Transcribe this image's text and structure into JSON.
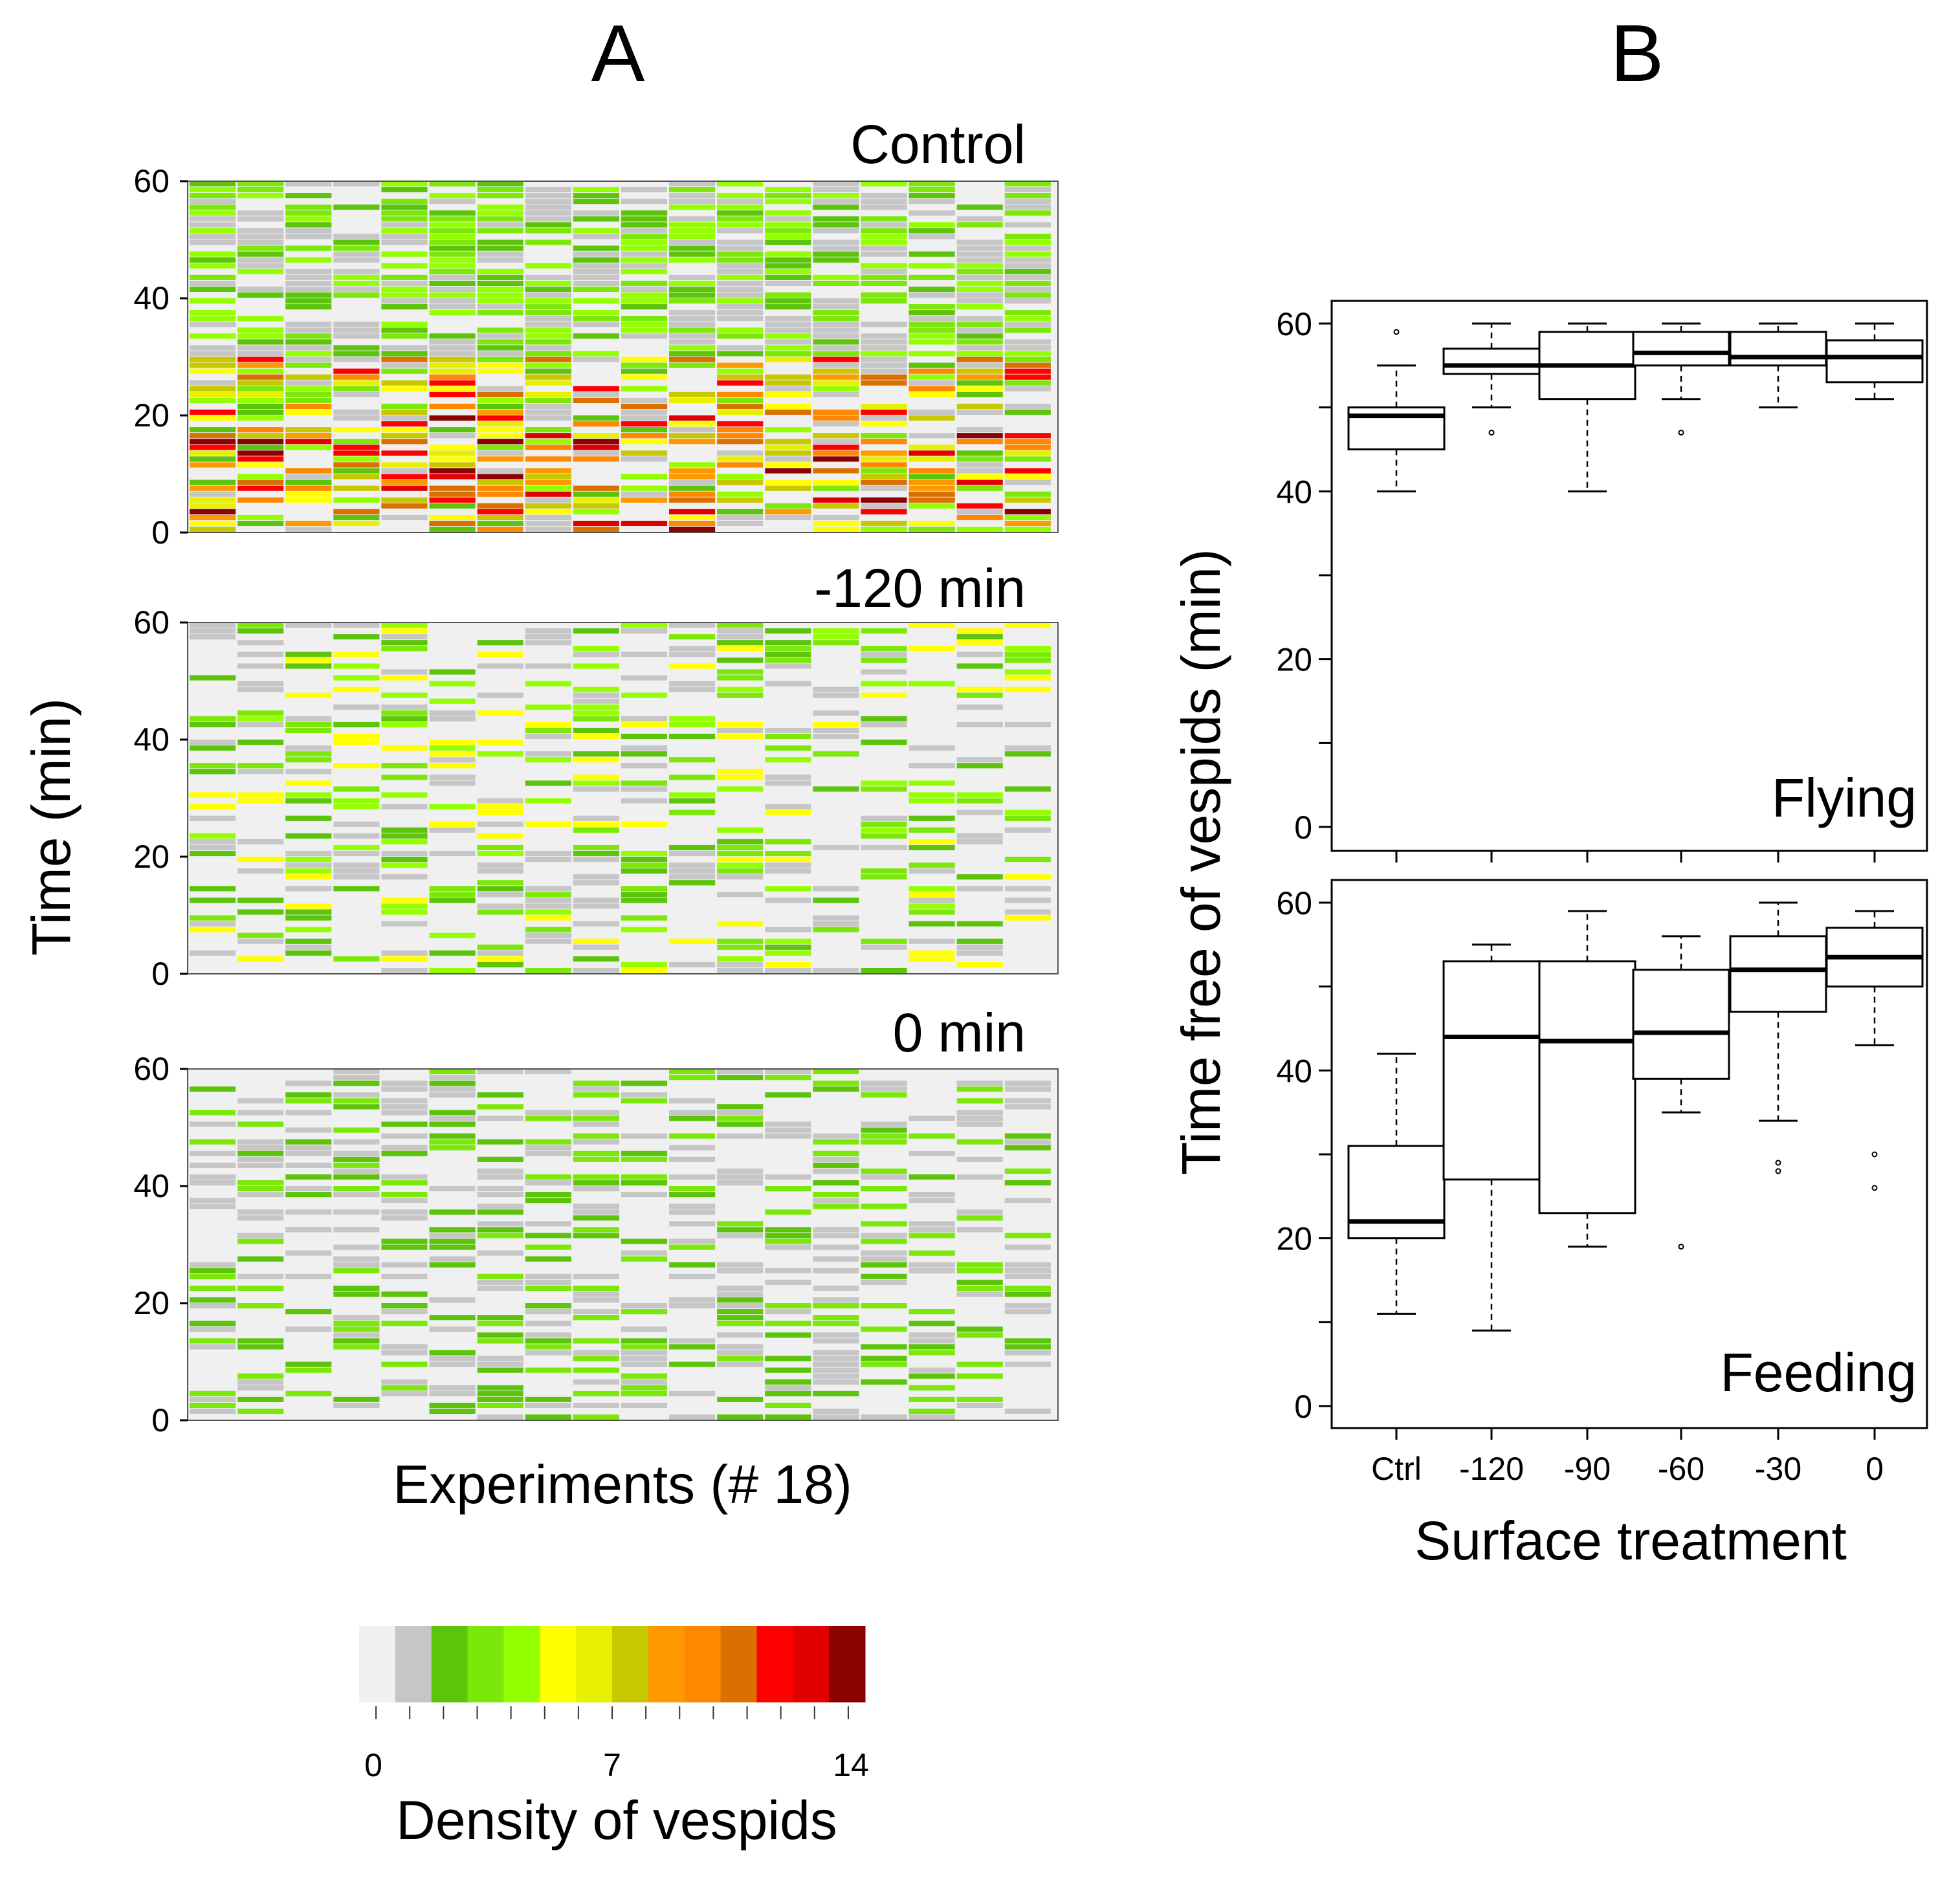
{
  "figure": {
    "panel_a_label": "A",
    "panel_b_label": "B"
  },
  "colors": {
    "density_scale": [
      "#f0f0f0",
      "#c6c6c6",
      "#5cc40a",
      "#7be80a",
      "#94ff00",
      "#ffff00",
      "#e6f000",
      "#c8c800",
      "#ff9900",
      "#ff8800",
      "#d97000",
      "#ff0000",
      "#e00000",
      "#8b0000"
    ],
    "box_stroke": "#000000",
    "axis": "#000000"
  },
  "chart_data": [
    {
      "type": "heatmap",
      "title": "Control",
      "ylabel": "Time (min)",
      "xlabel": "Experiments (# 18)",
      "ylim": [
        0,
        60
      ],
      "yticks": [
        0,
        20,
        40,
        60
      ],
      "n_experiments": 18,
      "density_range": [
        0,
        14
      ],
      "activity_profile": {
        "start": 0,
        "end": 60,
        "peak_start": 0,
        "peak_end": 30,
        "peak_density": 11,
        "tail_density": 4
      }
    },
    {
      "type": "heatmap",
      "title": "-120 min",
      "ylabel": "Time (min)",
      "ylim": [
        0,
        60
      ],
      "yticks": [
        0,
        20,
        40,
        60
      ],
      "n_experiments": 18,
      "density_range": [
        0,
        14
      ],
      "activity_profile": {
        "start": 0,
        "end": 60,
        "peak_start": 0,
        "peak_end": 60,
        "peak_density": 5,
        "tail_density": 1
      }
    },
    {
      "type": "heatmap",
      "title": "0 min",
      "ylabel": "Time (min)",
      "ylim": [
        0,
        60
      ],
      "yticks": [
        0,
        20,
        40,
        60
      ],
      "n_experiments": 18,
      "density_range": [
        0,
        14
      ],
      "activity_profile": {
        "start": 0,
        "end": 60,
        "peak_start": 0,
        "peak_end": 60,
        "peak_density": 3,
        "tail_density": 1
      }
    },
    {
      "type": "colorbar",
      "title": "Density of vespids",
      "range": [
        0,
        14
      ],
      "tick_labels": [
        "0",
        "7",
        "14"
      ],
      "tick_values": [
        0,
        7,
        14
      ]
    },
    {
      "type": "box",
      "title": "Flying",
      "ylabel": "Time free of vespids (min)",
      "ylim": [
        0,
        60
      ],
      "yticks": [
        0,
        20,
        40,
        60
      ],
      "categories": [
        "Ctrl",
        "-120",
        "-90",
        "-60",
        "-30",
        "0"
      ],
      "boxes": [
        {
          "whisker_low": 40,
          "q1": 45,
          "median": 49,
          "q3": 50,
          "whisker_high": 55,
          "outliers": [
            59
          ]
        },
        {
          "whisker_low": 50,
          "q1": 54,
          "median": 55,
          "q3": 57,
          "whisker_high": 60,
          "outliers": [
            47
          ]
        },
        {
          "whisker_low": 40,
          "q1": 51,
          "median": 55,
          "q3": 59,
          "whisker_high": 60,
          "outliers": []
        },
        {
          "whisker_low": 51,
          "q1": 55,
          "median": 56.5,
          "q3": 59,
          "whisker_high": 60,
          "outliers": [
            47
          ]
        },
        {
          "whisker_low": 50,
          "q1": 55,
          "median": 56,
          "q3": 59,
          "whisker_high": 60,
          "outliers": []
        },
        {
          "whisker_low": 51,
          "q1": 53,
          "median": 56,
          "q3": 58,
          "whisker_high": 60,
          "outliers": []
        }
      ]
    },
    {
      "type": "box",
      "title": "Feeding",
      "xlabel": "Surface treatment",
      "ylabel": "Time free of vespids (min)",
      "ylim": [
        0,
        60
      ],
      "yticks": [
        0,
        20,
        40,
        60
      ],
      "categories": [
        "Ctrl",
        "-120",
        "-90",
        "-60",
        "-30",
        "0"
      ],
      "boxes": [
        {
          "whisker_low": 11,
          "q1": 20,
          "median": 22,
          "q3": 31,
          "whisker_high": 42,
          "outliers": []
        },
        {
          "whisker_low": 9,
          "q1": 27,
          "median": 44,
          "q3": 53,
          "whisker_high": 55,
          "outliers": []
        },
        {
          "whisker_low": 19,
          "q1": 23,
          "median": 43.5,
          "q3": 53,
          "whisker_high": 59,
          "outliers": []
        },
        {
          "whisker_low": 35,
          "q1": 39,
          "median": 44.5,
          "q3": 52,
          "whisker_high": 56,
          "outliers": [
            19
          ]
        },
        {
          "whisker_low": 34,
          "q1": 47,
          "median": 52,
          "q3": 56,
          "whisker_high": 60,
          "outliers": [
            28,
            29
          ]
        },
        {
          "whisker_low": 43,
          "q1": 50,
          "median": 53.5,
          "q3": 57,
          "whisker_high": 59,
          "outliers": [
            26,
            30
          ]
        }
      ]
    }
  ]
}
